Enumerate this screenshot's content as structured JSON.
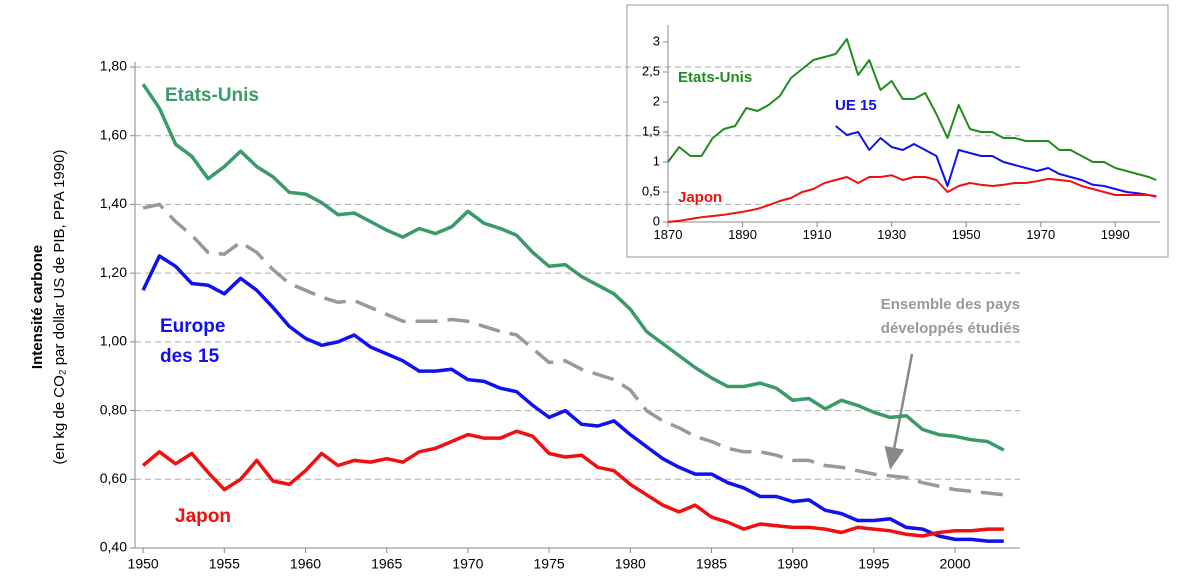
{
  "chart_data": [
    {
      "type": "line",
      "grid": true,
      "dashed_series": [
        3
      ],
      "ylabel": "Intensité carbone",
      "ylabel_sub": "(en kg  de CO₂ par dollar US de PIB, PPA 1990)",
      "xlim": [
        1949.5,
        2004
      ],
      "xticks": [
        1950,
        1955,
        1960,
        1965,
        1970,
        1975,
        1980,
        1985,
        1990,
        1995,
        2000
      ],
      "ylim": [
        0.4,
        1.8
      ],
      "yticks": [
        {
          "value": 0.4,
          "label": "0,40"
        },
        {
          "value": 0.6,
          "label": "0,60"
        },
        {
          "value": 0.8,
          "label": "0,80"
        },
        {
          "value": 1.0,
          "label": "1,00"
        },
        {
          "value": 1.2,
          "label": "1,20"
        },
        {
          "value": 1.4,
          "label": "1,40"
        },
        {
          "value": 1.6,
          "label": "1,60"
        },
        {
          "value": 1.8,
          "label": "1,80"
        }
      ],
      "x": [
        1950,
        1951,
        1952,
        1953,
        1954,
        1955,
        1956,
        1957,
        1958,
        1959,
        1960,
        1961,
        1962,
        1963,
        1964,
        1965,
        1966,
        1967,
        1968,
        1969,
        1970,
        1971,
        1972,
        1973,
        1974,
        1975,
        1976,
        1977,
        1978,
        1979,
        1980,
        1981,
        1982,
        1983,
        1984,
        1985,
        1986,
        1987,
        1988,
        1989,
        1990,
        1991,
        1992,
        1993,
        1994,
        1995,
        1996,
        1997,
        1998,
        1999,
        2000,
        2001,
        2002,
        2003
      ],
      "series": [
        {
          "name": "Etats-Unis",
          "color": "#3a9a6a",
          "values": [
            1.75,
            1.68,
            1.575,
            1.54,
            1.475,
            1.51,
            1.555,
            1.51,
            1.48,
            1.435,
            1.43,
            1.405,
            1.37,
            1.375,
            1.35,
            1.325,
            1.305,
            1.33,
            1.315,
            1.335,
            1.38,
            1.345,
            1.33,
            1.31,
            1.26,
            1.22,
            1.225,
            1.19,
            1.165,
            1.14,
            1.095,
            1.03,
            0.995,
            0.96,
            0.925,
            0.895,
            0.87,
            0.87,
            0.88,
            0.865,
            0.83,
            0.835,
            0.805,
            0.83,
            0.815,
            0.795,
            0.78,
            0.785,
            0.745,
            0.73,
            0.725,
            0.715,
            0.71,
            0.685
          ]
        },
        {
          "name": "Europe des 15",
          "color": "#1010f0",
          "values": [
            1.15,
            1.25,
            1.22,
            1.17,
            1.165,
            1.14,
            1.185,
            1.15,
            1.1,
            1.045,
            1.01,
            0.99,
            1.0,
            1.02,
            0.985,
            0.965,
            0.945,
            0.915,
            0.915,
            0.92,
            0.89,
            0.885,
            0.865,
            0.855,
            0.815,
            0.78,
            0.8,
            0.76,
            0.755,
            0.77,
            0.73,
            0.695,
            0.66,
            0.635,
            0.615,
            0.615,
            0.59,
            0.575,
            0.55,
            0.55,
            0.535,
            0.54,
            0.51,
            0.5,
            0.48,
            0.48,
            0.485,
            0.46,
            0.455,
            0.435,
            0.425,
            0.425,
            0.42,
            0.42
          ]
        },
        {
          "name": "Japon",
          "color": "#f01010",
          "values": [
            0.64,
            0.68,
            0.645,
            0.675,
            0.62,
            0.57,
            0.6,
            0.655,
            0.595,
            0.585,
            0.625,
            0.675,
            0.64,
            0.655,
            0.65,
            0.66,
            0.65,
            0.68,
            0.69,
            0.71,
            0.73,
            0.72,
            0.72,
            0.74,
            0.725,
            0.675,
            0.665,
            0.67,
            0.635,
            0.625,
            0.585,
            0.555,
            0.525,
            0.505,
            0.525,
            0.49,
            0.475,
            0.455,
            0.47,
            0.465,
            0.46,
            0.46,
            0.455,
            0.445,
            0.46,
            0.455,
            0.45,
            0.44,
            0.435,
            0.445,
            0.45,
            0.45,
            0.455,
            0.455
          ]
        },
        {
          "name": "Ensemble des pays développés étudiés",
          "color": "#999999",
          "values": [
            1.39,
            1.4,
            1.35,
            1.31,
            1.26,
            1.255,
            1.29,
            1.26,
            1.21,
            1.17,
            1.15,
            1.13,
            1.115,
            1.12,
            1.1,
            1.08,
            1.06,
            1.06,
            1.06,
            1.065,
            1.06,
            1.045,
            1.03,
            1.02,
            0.98,
            0.94,
            0.945,
            0.92,
            0.905,
            0.89,
            0.86,
            0.8,
            0.77,
            0.75,
            0.725,
            0.71,
            0.69,
            0.68,
            0.68,
            0.67,
            0.655,
            0.655,
            0.64,
            0.635,
            0.625,
            0.615,
            0.61,
            0.605,
            0.59,
            0.58,
            0.57,
            0.565,
            0.56,
            0.555
          ]
        }
      ]
    },
    {
      "type": "line",
      "grid": false,
      "xlim": [
        1870,
        2002
      ],
      "xticks": [
        1870,
        1890,
        1910,
        1930,
        1950,
        1970,
        1990
      ],
      "ylim": [
        0,
        3.2
      ],
      "yticks": [
        0,
        {
          "value": 0.5,
          "label": "0,5"
        },
        1,
        {
          "value": 1.5,
          "label": "1,5"
        },
        2,
        {
          "value": 2.5,
          "label": "2,5"
        },
        3
      ],
      "x": [
        1870,
        1873,
        1876,
        1879,
        1882,
        1885,
        1888,
        1891,
        1894,
        1897,
        1900,
        1903,
        1906,
        1909,
        1912,
        1915,
        1918,
        1921,
        1924,
        1927,
        1930,
        1933,
        1936,
        1939,
        1942,
        1945,
        1948,
        1951,
        1954,
        1957,
        1960,
        1963,
        1966,
        1969,
        1972,
        1975,
        1978,
        1981,
        1984,
        1987,
        1990,
        1993,
        1996,
        1999,
        2001
      ],
      "series": [
        {
          "name": "Etats-Unis",
          "color": "#1e8c1e",
          "values": [
            1.0,
            1.25,
            1.1,
            1.1,
            1.4,
            1.55,
            1.6,
            1.9,
            1.85,
            1.95,
            2.1,
            2.4,
            2.55,
            2.7,
            2.75,
            2.8,
            3.05,
            2.45,
            2.7,
            2.2,
            2.35,
            2.05,
            2.05,
            2.15,
            1.8,
            1.4,
            1.95,
            1.55,
            1.5,
            1.5,
            1.4,
            1.4,
            1.35,
            1.35,
            1.35,
            1.2,
            1.2,
            1.1,
            1.0,
            1.0,
            0.9,
            0.85,
            0.8,
            0.75,
            0.7
          ]
        },
        {
          "name": "UE 15",
          "color": "#1010f0",
          "values": [
            null,
            null,
            null,
            null,
            null,
            null,
            null,
            null,
            null,
            null,
            null,
            null,
            null,
            null,
            null,
            1.6,
            1.45,
            1.5,
            1.2,
            1.4,
            1.25,
            1.2,
            1.3,
            1.2,
            1.1,
            0.6,
            1.2,
            1.15,
            1.1,
            1.1,
            1.0,
            0.95,
            0.9,
            0.85,
            0.9,
            0.8,
            0.75,
            0.7,
            0.62,
            0.6,
            0.55,
            0.5,
            0.48,
            0.45,
            0.43
          ]
        },
        {
          "name": "Japon",
          "color": "#f01010",
          "values": [
            0.0,
            0.02,
            0.05,
            0.08,
            0.1,
            0.12,
            0.15,
            0.18,
            0.22,
            0.28,
            0.35,
            0.4,
            0.5,
            0.55,
            0.65,
            0.7,
            0.75,
            0.65,
            0.75,
            0.75,
            0.78,
            0.7,
            0.75,
            0.75,
            0.7,
            0.5,
            0.6,
            0.65,
            0.62,
            0.6,
            0.62,
            0.65,
            0.65,
            0.68,
            0.72,
            0.7,
            0.68,
            0.6,
            0.55,
            0.5,
            0.45,
            0.45,
            0.45,
            0.45,
            0.42
          ]
        }
      ]
    }
  ]
}
